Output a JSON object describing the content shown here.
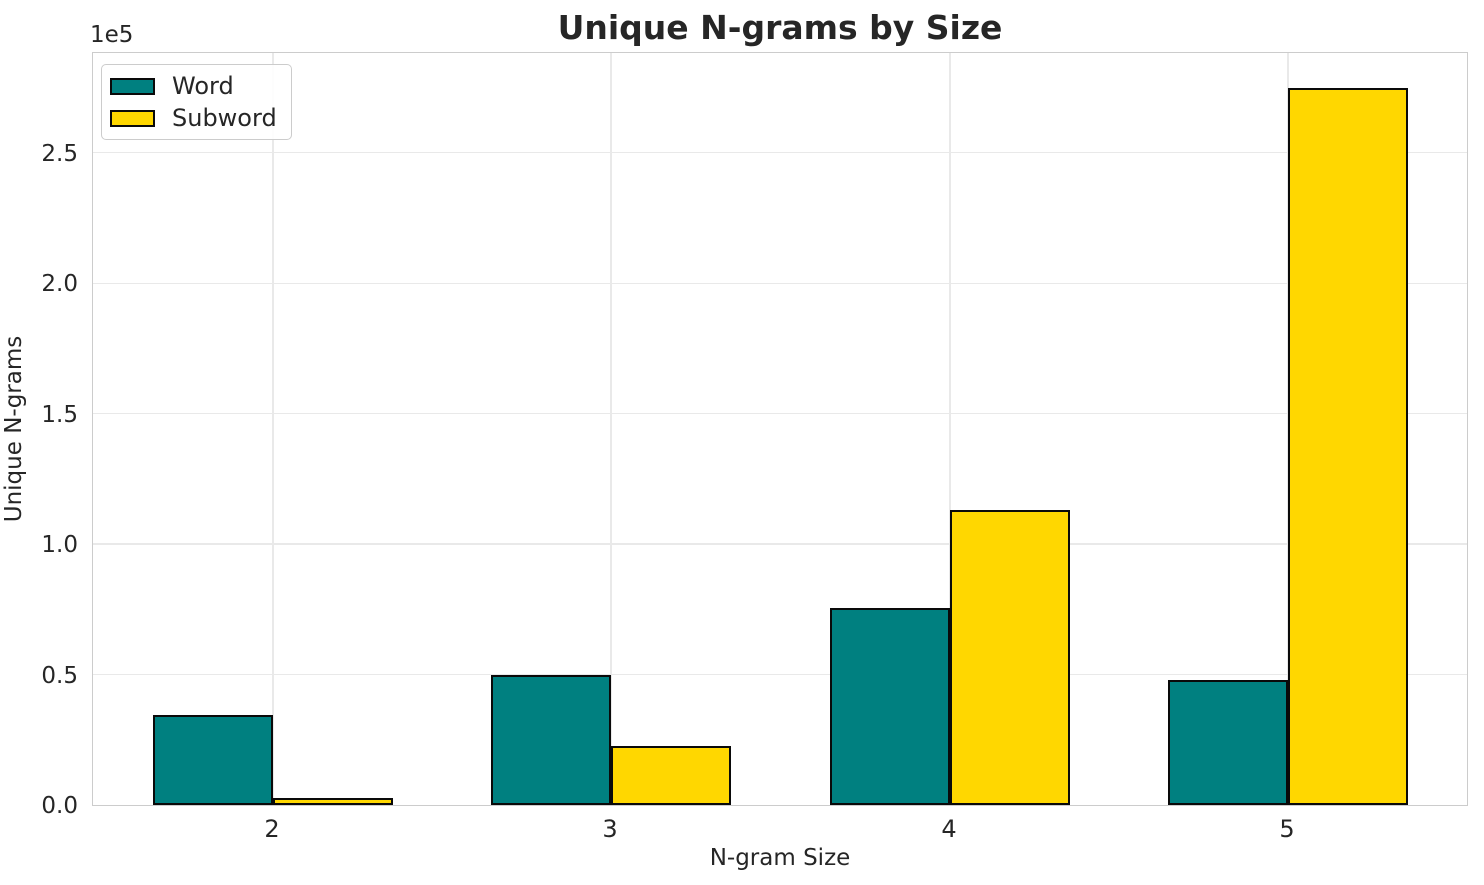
{
  "chart_data": {
    "type": "bar",
    "title": "Unique N-grams by Size",
    "xlabel": "N-gram Size",
    "ylabel": "Unique N-grams",
    "y_offset_text": "1e5",
    "categories": [
      "2",
      "3",
      "4",
      "5"
    ],
    "series": [
      {
        "name": "Word",
        "color": "#008080",
        "values": [
          34500,
          50000,
          75500,
          48000
        ]
      },
      {
        "name": "Subword",
        "color": "#FFD700",
        "values": [
          2800,
          22500,
          113000,
          275000
        ]
      }
    ],
    "bar_edge_color": "#0a0a0a",
    "ylim": [
      0,
      289000
    ],
    "yticks": [
      0,
      50000,
      100000,
      150000,
      200000,
      250000
    ],
    "ytick_labels": [
      "0.0",
      "0.5",
      "1.0",
      "1.5",
      "2.0",
      "2.5"
    ],
    "grid": true,
    "grid_color": "#e9e9e9",
    "spine_color": "#cccccc",
    "legend_position": "upper left",
    "background_color": "#ffffff"
  }
}
